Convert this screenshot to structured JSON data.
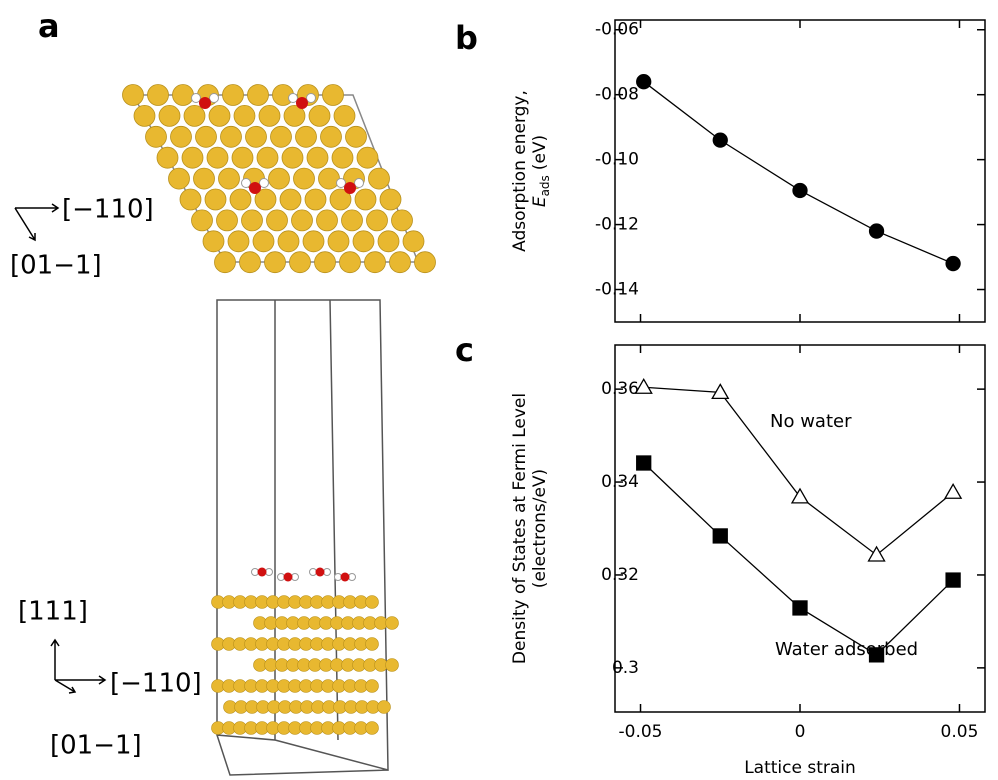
{
  "figure": {
    "panel_labels": [
      "a",
      "b",
      "c"
    ],
    "top_view_axes": [
      "[−110]",
      "[01−1]"
    ],
    "side_view_axes": [
      "[111]",
      "[−110]",
      "[01−1]"
    ]
  },
  "chart_data": [
    {
      "type": "line",
      "ylabel": "Adsorption energy,",
      "ylabel2": [
        "E",
        "ads",
        "(eV)"
      ],
      "x": [
        -0.049,
        -0.025,
        0,
        0.024,
        0.048
      ],
      "series": [
        {
          "marker": "circle",
          "color": "#000000",
          "fill": "#000000",
          "values": [
            -0.076,
            -0.094,
            -0.1095,
            -0.122,
            -0.132
          ]
        }
      ],
      "xlim": [
        -0.058,
        0.058
      ],
      "ylim": [
        -0.15,
        -0.057
      ],
      "yticks": [
        -0.06,
        -0.08,
        {
          "value": -0.1,
          "label": "-0.10"
        },
        -0.12,
        -0.14
      ]
    },
    {
      "type": "line",
      "ylabel": "Density of States at Fermi Level",
      "ylabel2": [
        "(electrons/eV)"
      ],
      "xlabel": "Lattice strain",
      "x": [
        -0.049,
        -0.025,
        0,
        0.024,
        0.048
      ],
      "series": [
        {
          "name": "No water",
          "marker": "triangle",
          "color": "#000000",
          "fill": "#ffffff",
          "values": [
            0.3604,
            0.3593,
            0.3368,
            0.3243,
            0.3378
          ]
        },
        {
          "name": "Water adsorbed",
          "marker": "square",
          "color": "#000000",
          "fill": "#000000",
          "values": [
            0.3441,
            0.3284,
            0.3129,
            0.3028,
            0.3189
          ]
        }
      ],
      "xlim": [
        -0.058,
        0.058
      ],
      "ylim": [
        0.2905,
        0.3695
      ],
      "xticks": [
        -0.05,
        0,
        0.05
      ],
      "yticks": [
        0.36,
        0.34,
        0.32,
        0.3
      ]
    }
  ]
}
